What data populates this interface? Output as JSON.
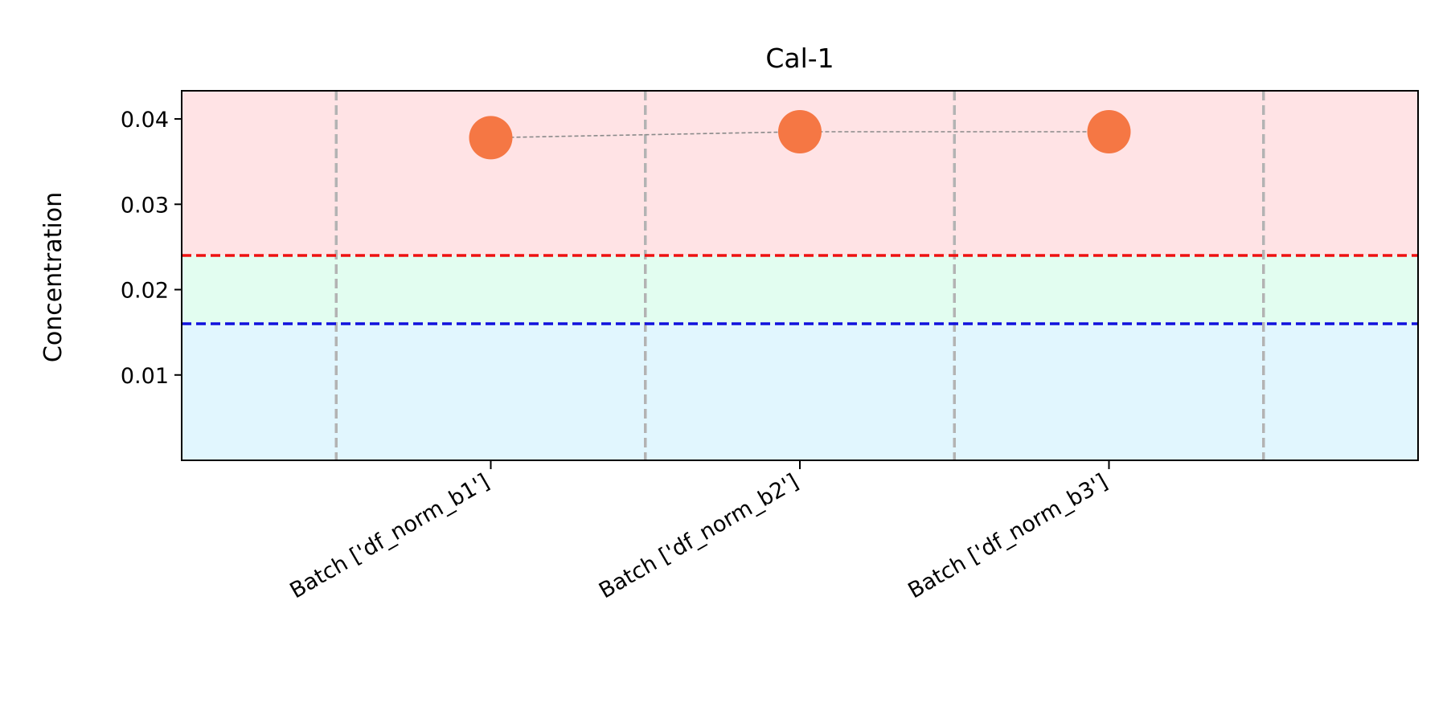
{
  "chart_data": {
    "type": "scatter",
    "title": "Cal-1",
    "xlabel": "",
    "ylabel": "Concentration",
    "categories": [
      "Batch ['df_norm_b1']",
      "Batch ['df_norm_b2']",
      "Batch ['df_norm_b3']"
    ],
    "values": [
      0.0378,
      0.0385,
      0.0385
    ],
    "ylim": [
      0.0,
      0.0433
    ],
    "yticks": [
      0.01,
      0.02,
      0.03,
      0.04
    ],
    "ytick_labels": [
      "0.01",
      "0.02",
      "0.03",
      "0.04"
    ],
    "thresholds": {
      "upper": 0.024,
      "lower": 0.016
    },
    "bands": {
      "above_upper": "#ffe3e5",
      "between": "#e2fdf0",
      "below_lower": "#e1f6fe"
    },
    "colors": {
      "point": "#f57744",
      "connector": "#8a8a8a",
      "upper_line": "#ee1111",
      "lower_line": "#1111dd",
      "separator": "#b3b3b3",
      "axes": "#000000"
    },
    "grid": false,
    "separators_between_categories": true,
    "xtick_rotation_deg": 30
  }
}
